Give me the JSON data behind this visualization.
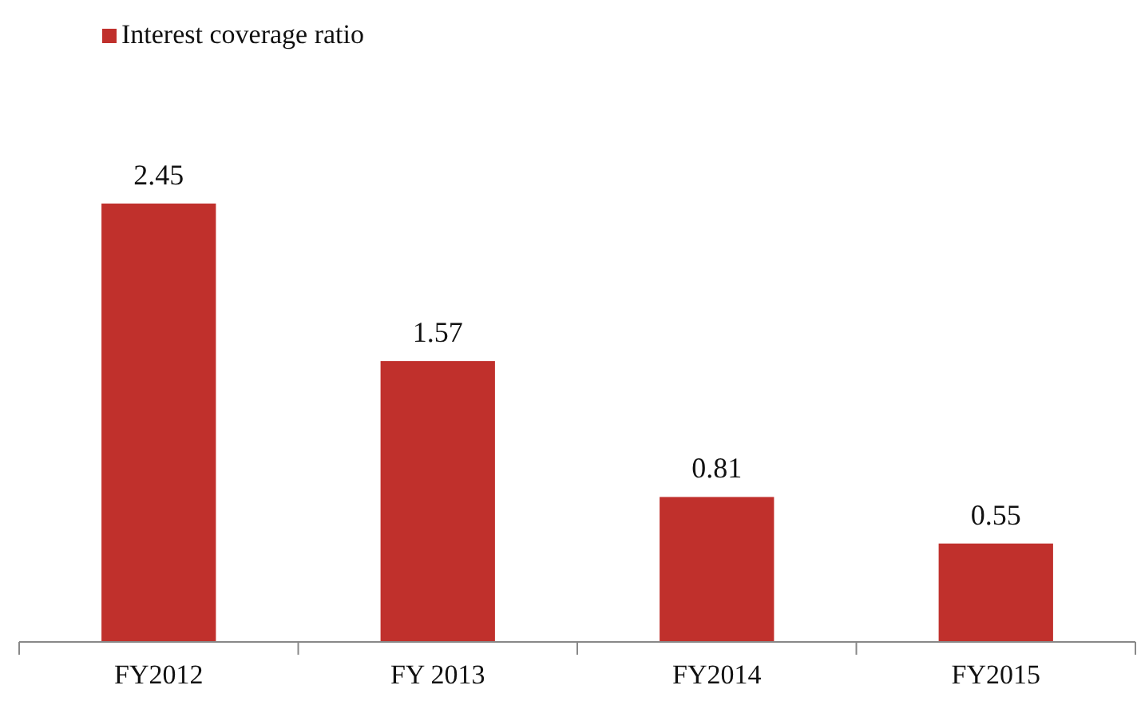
{
  "chart_data": {
    "type": "bar",
    "categories": [
      "FY2012",
      "FY 2013",
      "FY2014",
      "FY2015"
    ],
    "series": [
      {
        "name": "Interest coverage ratio",
        "color": "#c0302c",
        "values": [
          2.45,
          1.57,
          0.81,
          0.55
        ]
      }
    ],
    "data_labels": true,
    "legend": "top left"
  }
}
